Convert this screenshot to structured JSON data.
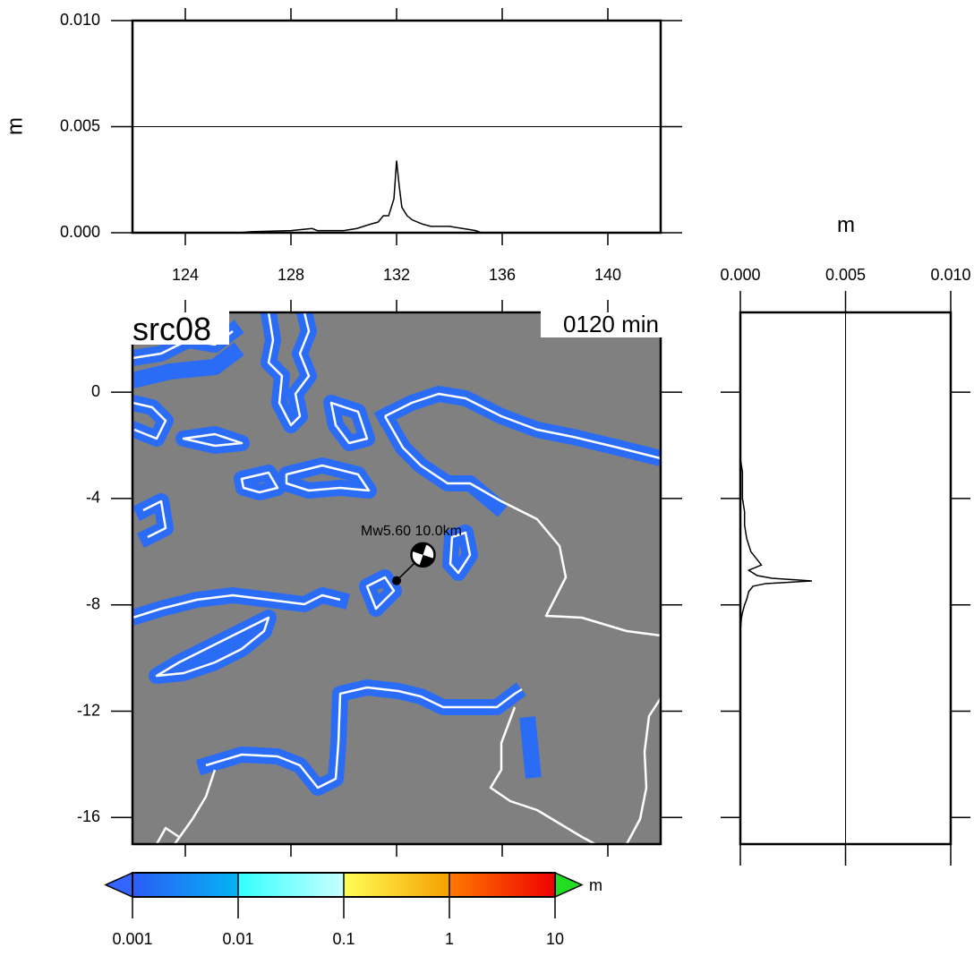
{
  "chart_data": [
    {
      "type": "line",
      "ylabel": "m",
      "xlim": [
        122,
        142
      ],
      "xticks": [
        124,
        128,
        132,
        136,
        140
      ],
      "ylim": [
        0,
        0.01
      ],
      "yticks": [
        {
          "value": 0,
          "label": "0.000"
        },
        {
          "value": 0.005,
          "label": "0.005"
        },
        {
          "value": 0.01,
          "label": "0.010"
        }
      ],
      "grid": true,
      "series": [
        {
          "color": "#000000",
          "x": [
            122,
            124,
            126,
            126.5,
            128,
            128.8,
            129,
            130,
            130.5,
            131,
            131.3,
            131.5,
            131.7,
            131.8,
            131.9,
            132,
            132.1,
            132.2,
            132.4,
            132.6,
            132.8,
            133,
            133.3,
            133.6,
            134,
            134.5,
            135,
            135.2,
            136,
            142
          ],
          "values": [
            0,
            0,
            0,
            5e-05,
            0.0001,
            0.0002,
            0.0001,
            0.0001,
            0.0002,
            0.0004,
            0.0005,
            0.0008,
            0.0008,
            0.0012,
            0.0016,
            0.0034,
            0.0022,
            0.0012,
            0.0008,
            0.0006,
            0.0005,
            0.0004,
            0.0003,
            0.0003,
            0.0003,
            0.0002,
            0.0001,
            0,
            0,
            0
          ]
        }
      ]
    },
    {
      "type": "line",
      "orientation": "horizontal",
      "xlabel": "m",
      "ylim": [
        0,
        0.01
      ],
      "yticks": [
        {
          "value": 0,
          "label": "0.000"
        },
        {
          "value": 0.005,
          "label": "0.005"
        },
        {
          "value": 0.01,
          "label": "0.010"
        }
      ],
      "xlim": [
        -17,
        3
      ],
      "grid": true,
      "series": [
        {
          "color": "#000000",
          "x": [
            3,
            -2.5,
            -3,
            -3.3,
            -4,
            -4.5,
            -5,
            -5.5,
            -6,
            -6.3,
            -6.5,
            -6.7,
            -6.9,
            -7.0,
            -7.1,
            -7.2,
            -7.3,
            -7.5,
            -7.8,
            -8,
            -8.3,
            -8.5,
            -9,
            -17
          ],
          "values": [
            0,
            0,
            0.0001,
            0.0001,
            0.0001,
            0.0002,
            0.0002,
            0.0003,
            0.0005,
            0.0008,
            0.001,
            0.0004,
            0.0008,
            0.0015,
            0.0034,
            0.0012,
            0.0006,
            0.0004,
            0.0003,
            0.0002,
            0.0001,
            5e-05,
            0,
            0
          ]
        }
      ]
    },
    {
      "type": "map",
      "label": "src08",
      "time_label": "0120 min",
      "xlim": [
        122,
        142
      ],
      "ylim": [
        -17,
        3
      ],
      "yticks": [
        0,
        -4,
        -8,
        -12,
        -16
      ],
      "source": {
        "annotation": "Mw5.60 10.0km",
        "lon": 133.0,
        "lat": -6.12
      },
      "epicenter": {
        "lon": 132.0,
        "lat": -7.09
      }
    },
    {
      "type": "colorbar",
      "unit": "m",
      "log": true,
      "ticks": [
        0.001,
        0.01,
        0.1,
        1,
        10
      ],
      "colors": [
        [
          "#2b5cf6",
          "#05b4f3"
        ],
        [
          "#33ffff",
          "#c8ffff"
        ],
        [
          "#ffff55",
          "#f5a000"
        ],
        [
          "#ff7a00",
          "#ee0000"
        ]
      ],
      "under_color": "#3366ff",
      "over_color": "#22dd22"
    }
  ]
}
